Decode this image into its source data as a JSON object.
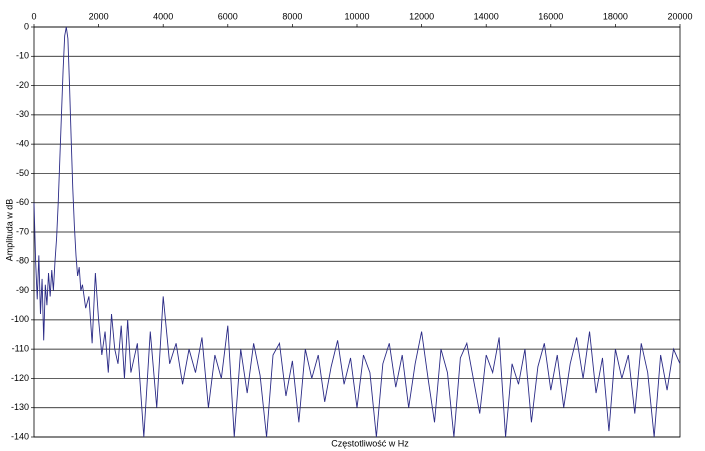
{
  "chart_data": {
    "type": "line",
    "x_label": "Częstotliwość w Hz",
    "y_label": "Amplituda w dB",
    "color": "#2b2b86",
    "grid": true,
    "xlim": [
      0,
      20000
    ],
    "xticks": [
      0,
      2000,
      4000,
      6000,
      8000,
      10000,
      12000,
      14000,
      16000,
      18000,
      20000
    ],
    "ylim": [
      -140,
      0
    ],
    "yticks": [
      0,
      -10,
      -20,
      -30,
      -40,
      -50,
      -60,
      -70,
      -80,
      -90,
      -100,
      -110,
      -120,
      -130,
      -140
    ],
    "x": [
      0,
      50,
      100,
      150,
      200,
      250,
      300,
      350,
      400,
      450,
      500,
      550,
      600,
      650,
      700,
      750,
      800,
      850,
      900,
      950,
      1000,
      1050,
      1100,
      1150,
      1200,
      1250,
      1300,
      1350,
      1400,
      1450,
      1500,
      1600,
      1700,
      1800,
      1900,
      2000,
      2100,
      2200,
      2300,
      2400,
      2500,
      2600,
      2700,
      2800,
      2900,
      3000,
      3200,
      3400,
      3600,
      3800,
      4000,
      4200,
      4400,
      4600,
      4800,
      5000,
      5200,
      5400,
      5600,
      5800,
      6000,
      6200,
      6400,
      6600,
      6800,
      7000,
      7200,
      7400,
      7600,
      7800,
      8000,
      8200,
      8400,
      8600,
      8800,
      9000,
      9200,
      9400,
      9600,
      9800,
      10000,
      10200,
      10400,
      10600,
      10800,
      11000,
      11200,
      11400,
      11600,
      11800,
      12000,
      12200,
      12400,
      12600,
      12800,
      13000,
      13200,
      13400,
      13600,
      13800,
      14000,
      14200,
      14400,
      14600,
      14800,
      15000,
      15200,
      15400,
      15600,
      15800,
      16000,
      16200,
      16400,
      16600,
      16800,
      17000,
      17200,
      17400,
      17600,
      17800,
      18000,
      18200,
      18400,
      18600,
      18800,
      19000,
      19200,
      19400,
      19600,
      19800,
      20000
    ],
    "values": [
      -60,
      -80,
      -93,
      -78,
      -98,
      -86,
      -107,
      -88,
      -95,
      -84,
      -92,
      -83,
      -90,
      -80,
      -72,
      -60,
      -45,
      -30,
      -15,
      -3,
      0,
      -4,
      -20,
      -38,
      -55,
      -68,
      -78,
      -85,
      -82,
      -90,
      -88,
      -96,
      -92,
      -108,
      -84,
      -100,
      -112,
      -104,
      -118,
      -98,
      -110,
      -115,
      -102,
      -120,
      -100,
      -118,
      -108,
      -140,
      -104,
      -130,
      -92,
      -115,
      -108,
      -122,
      -110,
      -118,
      -106,
      -130,
      -112,
      -120,
      -102,
      -140,
      -110,
      -125,
      -108,
      -119,
      -140,
      -112,
      -108,
      -126,
      -114,
      -135,
      -110,
      -120,
      -112,
      -128,
      -116,
      -107,
      -122,
      -113,
      -130,
      -112,
      -118,
      -140,
      -115,
      -108,
      -123,
      -112,
      -130,
      -115,
      -104,
      -120,
      -135,
      -110,
      -118,
      -140,
      -113,
      -108,
      -120,
      -132,
      -112,
      -118,
      -106,
      -140,
      -115,
      -122,
      -110,
      -135,
      -116,
      -108,
      -124,
      -112,
      -130,
      -115,
      -106,
      -120,
      -104,
      -125,
      -113,
      -138,
      -110,
      -120,
      -112,
      -132,
      -108,
      -118,
      -140,
      -112,
      -124,
      -110,
      -115
    ]
  }
}
